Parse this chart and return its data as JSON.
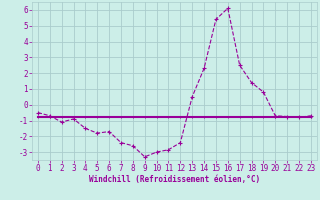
{
  "xlabel": "Windchill (Refroidissement éolien,°C)",
  "x_values": [
    0,
    1,
    2,
    3,
    4,
    5,
    6,
    7,
    8,
    9,
    10,
    11,
    12,
    13,
    14,
    15,
    16,
    17,
    18,
    19,
    20,
    21,
    22,
    23
  ],
  "line1_y": [
    -0.5,
    -0.7,
    -1.1,
    -0.9,
    -1.5,
    -1.8,
    -1.7,
    -2.4,
    -2.6,
    -3.3,
    -3.0,
    -2.85,
    -2.4,
    0.5,
    2.3,
    5.4,
    6.1,
    2.5,
    1.4,
    0.8,
    -0.7,
    -0.75,
    -0.8,
    -0.7
  ],
  "line2_y": [
    -0.75,
    -0.75,
    -0.75,
    -0.75,
    -0.75,
    -0.75,
    -0.75,
    -0.75,
    -0.75,
    -0.75,
    -0.75,
    -0.75,
    -0.75,
    -0.75,
    -0.75,
    -0.75,
    -0.75,
    -0.75,
    -0.75,
    -0.75,
    -0.75,
    -0.75,
    -0.75,
    -0.75
  ],
  "line_color": "#990099",
  "bg_color": "#cceee8",
  "grid_color": "#aacccc",
  "ylim": [
    -3.5,
    6.5
  ],
  "xlim": [
    -0.5,
    23.5
  ],
  "yticks": [
    -3,
    -2,
    -1,
    0,
    1,
    2,
    3,
    4,
    5,
    6
  ],
  "xticks": [
    0,
    1,
    2,
    3,
    4,
    5,
    6,
    7,
    8,
    9,
    10,
    11,
    12,
    13,
    14,
    15,
    16,
    17,
    18,
    19,
    20,
    21,
    22,
    23
  ],
  "tick_fontsize": 5.5,
  "xlabel_fontsize": 5.5
}
